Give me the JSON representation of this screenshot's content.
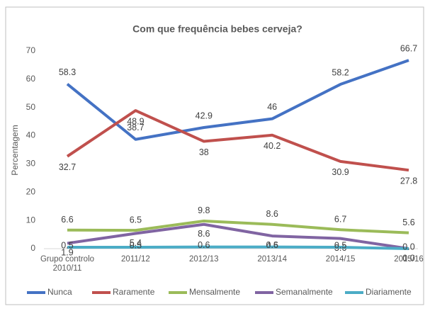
{
  "chart_data": {
    "type": "line",
    "title": "Com que frequência bebes cerveja?",
    "y_label": "Percentagem",
    "categories": [
      "Grupo controlo 2010/11",
      "2011/12",
      "2012/13",
      "2013/14",
      "2014/15",
      "2015/16"
    ],
    "series": [
      {
        "name": "Nunca",
        "color": "#4472c4",
        "values": [
          58.3,
          38.7,
          42.9,
          46,
          58.2,
          66.7
        ]
      },
      {
        "name": "Raramente",
        "color": "#c0504d",
        "values": [
          32.7,
          48.9,
          38,
          40.2,
          30.9,
          27.8
        ]
      },
      {
        "name": "Mensalmente",
        "color": "#9bbb59",
        "values": [
          6.6,
          6.5,
          9.8,
          8.6,
          6.7,
          5.6
        ]
      },
      {
        "name": "Semanalmente",
        "color": "#8064a2",
        "values": [
          1.9,
          5.4,
          8.6,
          4.5,
          3.6,
          0.0
        ],
        "value_labels": [
          "1.9",
          "5.4",
          "8.6",
          "4.5",
          "3.6",
          "0.0"
        ]
      },
      {
        "name": "Diariamente",
        "color": "#4bacc6",
        "values": [
          0.5,
          0.5,
          0.6,
          0.6,
          0.5,
          0.0
        ],
        "value_labels": [
          "0.5",
          "0.5",
          "0.6",
          "0.6",
          "0.5",
          "0.0"
        ]
      }
    ],
    "ylim": [
      0,
      70
    ],
    "yticks": [
      0,
      10,
      20,
      30,
      40,
      50,
      60,
      70
    ],
    "grid": false,
    "legend": "bottom"
  }
}
